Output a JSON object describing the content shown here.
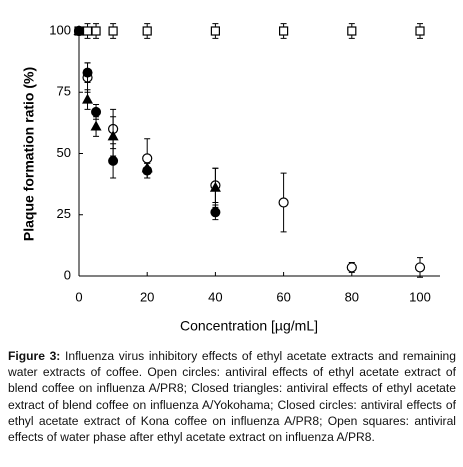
{
  "chart_data": {
    "type": "scatter",
    "x_label": "Concentration [µg/mL]",
    "y_label": "Plaque formation ratio (%)",
    "xlim": [
      0,
      100
    ],
    "ylim": [
      0,
      100
    ],
    "xticks": [
      0,
      20,
      40,
      60,
      80,
      100
    ],
    "yticks": [
      0,
      25,
      50,
      75,
      100
    ],
    "series": [
      {
        "marker": "open-square",
        "color": "#000000",
        "x": [
          0,
          2.5,
          5,
          10,
          20,
          40,
          60,
          80,
          100
        ],
        "values": [
          100,
          100,
          100,
          100,
          100,
          100,
          100,
          100,
          100
        ],
        "errors": [
          0,
          3,
          3,
          3,
          3,
          3,
          3,
          3,
          3
        ]
      },
      {
        "marker": "open-circle",
        "color": "#000000",
        "x": [
          0,
          2.5,
          10,
          20,
          40,
          60,
          80,
          100
        ],
        "values": [
          100,
          81,
          60,
          48,
          37,
          30,
          3.5,
          3.5
        ],
        "errors": [
          0,
          6,
          8,
          8,
          7,
          12,
          2,
          4
        ]
      },
      {
        "marker": "filled-triangle",
        "color": "#000000",
        "x": [
          0,
          2.5,
          5,
          10,
          20,
          40
        ],
        "values": [
          100,
          72,
          61,
          57,
          44,
          36
        ],
        "errors": [
          0,
          4,
          4,
          8,
          2,
          8
        ]
      },
      {
        "marker": "filled-circle",
        "color": "#000000",
        "x": [
          0,
          2.5,
          5,
          10,
          20,
          40
        ],
        "values": [
          100,
          83,
          67,
          47,
          43,
          26
        ],
        "errors": [
          0,
          4,
          3,
          7,
          3,
          3
        ]
      }
    ],
    "caption": {
      "label": "Figure 3:",
      "text": "Influenza virus inhibitory effects of ethyl acetate extracts and remaining water extracts of coffee. Open circles: antiviral effects of ethyl acetate extract of blend coffee on influenza A/PR8; Closed triangles: antiviral effects of ethyl acetate extract of blend coffee on influenza A/Yokohama; Closed circles: antiviral effects of ethyl acetate extract of Kona coffee on influenza A/PR8; Open squares: antiviral effects of water phase after ethyl acetate extract on influenza A/PR8."
    }
  }
}
